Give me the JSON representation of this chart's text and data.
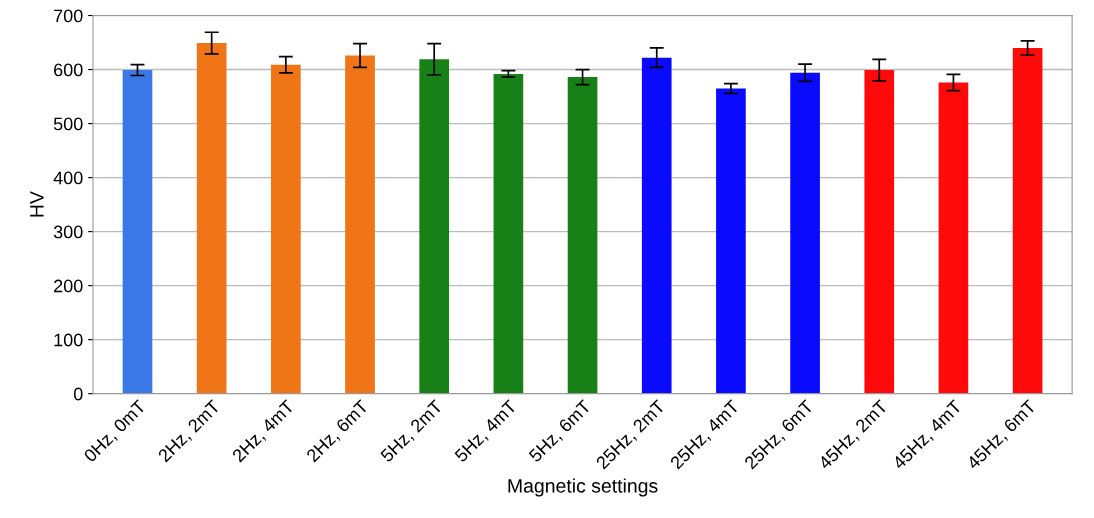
{
  "chart_data": {
    "type": "bar",
    "xlabel": "Magnetic settings",
    "ylabel": "HV",
    "categories": [
      "0Hz, 0mT",
      "2Hz, 2mT",
      "2Hz, 4mT",
      "2Hz, 6mT",
      "5Hz, 2mT",
      "5Hz, 4mT",
      "5Hz, 6mT",
      "25Hz, 2mT",
      "25Hz, 4mT",
      "25Hz, 6mT",
      "45Hz, 2mT",
      "45Hz, 4mT",
      "45Hz, 6mT"
    ],
    "values": [
      599,
      649,
      609,
      626,
      619,
      592,
      586,
      622,
      565,
      594,
      599,
      576,
      640
    ],
    "errors": [
      10,
      20,
      15,
      22,
      29,
      6,
      14,
      18,
      9,
      16,
      20,
      15,
      13
    ],
    "colors": [
      "#3a78e8",
      "#f07516",
      "#f07516",
      "#f07516",
      "#178017",
      "#178017",
      "#178017",
      "#0a0aff",
      "#0a0aff",
      "#0a0aff",
      "#ff0a0a",
      "#ff0a0a",
      "#ff0a0a"
    ],
    "ylim": [
      0,
      700
    ],
    "yticks": [
      0,
      100,
      200,
      300,
      400,
      500,
      600,
      700
    ],
    "grid": "y",
    "legend": false
  }
}
